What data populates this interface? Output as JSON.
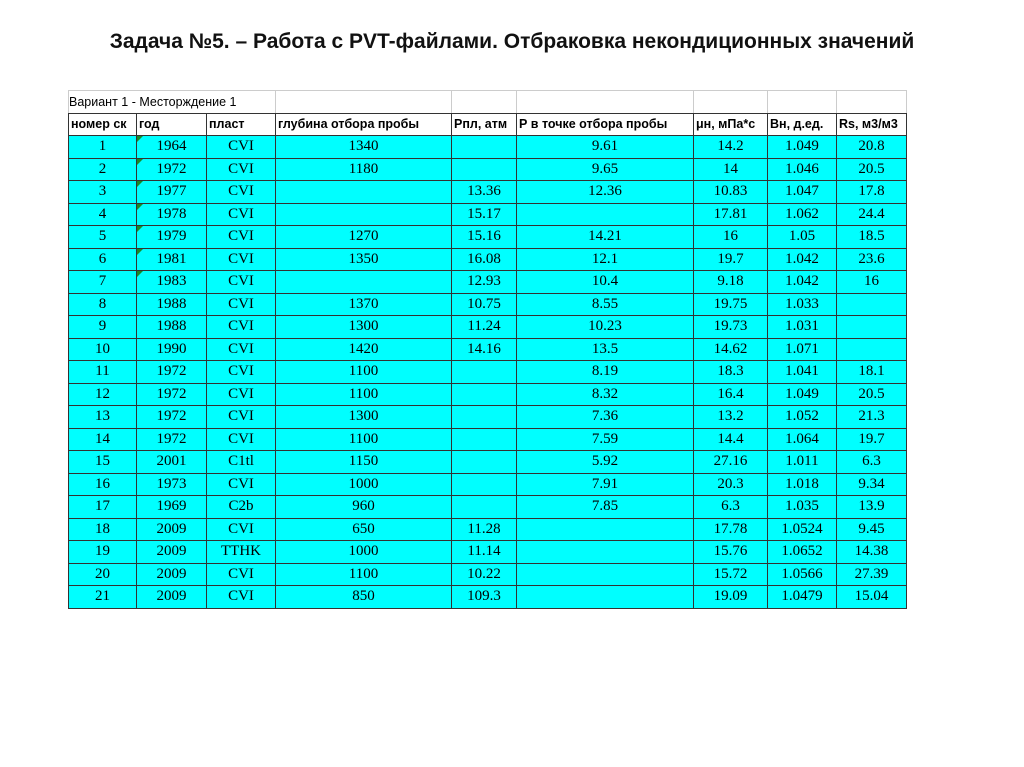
{
  "title": "Задача №5. – Работа с PVT-файлами. Отбраковка некондиционных значений",
  "table": {
    "caption": "Вариант 1 - Месторждение 1",
    "headers": [
      "номер ск",
      "год",
      "пласт",
      "глубина отбора пробы",
      "Рпл, атм",
      "Р  в точке отбора пробы",
      "μн, мПа*с",
      "Вн, д.ед.",
      "Rs, м3/м3"
    ],
    "rows": [
      [
        "1",
        "1964",
        "CVI",
        "1340",
        "",
        "9.61",
        "14.2",
        "1.049",
        "20.8"
      ],
      [
        "2",
        "1972",
        "CVI",
        "1180",
        "",
        "9.65",
        "14",
        "1.046",
        "20.5"
      ],
      [
        "3",
        "1977",
        "CVI",
        "",
        "13.36",
        "12.36",
        "10.83",
        "1.047",
        "17.8"
      ],
      [
        "4",
        "1978",
        "CVI",
        "",
        "15.17",
        "",
        "17.81",
        "1.062",
        "24.4"
      ],
      [
        "5",
        "1979",
        "CVI",
        "1270",
        "15.16",
        "14.21",
        "16",
        "1.05",
        "18.5"
      ],
      [
        "6",
        "1981",
        "CVI",
        "1350",
        "16.08",
        "12.1",
        "19.7",
        "1.042",
        "23.6"
      ],
      [
        "7",
        "1983",
        "CVI",
        "",
        "12.93",
        "10.4",
        "9.18",
        "1.042",
        "16"
      ],
      [
        "8",
        "1988",
        "CVI",
        "1370",
        "10.75",
        "8.55",
        "19.75",
        "1.033",
        ""
      ],
      [
        "9",
        "1988",
        "CVI",
        "1300",
        "11.24",
        "10.23",
        "19.73",
        "1.031",
        ""
      ],
      [
        "10",
        "1990",
        "CVI",
        "1420",
        "14.16",
        "13.5",
        "14.62",
        "1.071",
        ""
      ],
      [
        "11",
        "1972",
        "CVI",
        "1100",
        "",
        "8.19",
        "18.3",
        "1.041",
        "18.1"
      ],
      [
        "12",
        "1972",
        "CVI",
        "1100",
        "",
        "8.32",
        "16.4",
        "1.049",
        "20.5"
      ],
      [
        "13",
        "1972",
        "CVI",
        "1300",
        "",
        "7.36",
        "13.2",
        "1.052",
        "21.3"
      ],
      [
        "14",
        "1972",
        "CVI",
        "1100",
        "",
        "7.59",
        "14.4",
        "1.064",
        "19.7"
      ],
      [
        "15",
        "2001",
        "C1tl",
        "1150",
        "",
        "5.92",
        "27.16",
        "1.011",
        "6.3"
      ],
      [
        "16",
        "1973",
        "CVI",
        "1000",
        "",
        "7.91",
        "20.3",
        "1.018",
        "9.34"
      ],
      [
        "17",
        "1969",
        "C2b",
        "960",
        "",
        "7.85",
        "6.3",
        "1.035",
        "13.9"
      ],
      [
        "18",
        "2009",
        "CVI",
        "650",
        "11.28",
        "",
        "17.78",
        "1.0524",
        "9.45"
      ],
      [
        "19",
        "2009",
        "TTHK",
        "1000",
        "11.14",
        "",
        "15.76",
        "1.0652",
        "14.38"
      ],
      [
        "20",
        "2009",
        "CVI",
        "1100",
        "10.22",
        "",
        "15.72",
        "1.0566",
        "27.39"
      ],
      [
        "21",
        "2009",
        "CVI",
        "850",
        "109.3",
        "",
        "19.09",
        "1.0479",
        "15.04"
      ]
    ]
  },
  "colors": {
    "cell_fill": "#00ffff",
    "marker": "#1a8a2a"
  }
}
